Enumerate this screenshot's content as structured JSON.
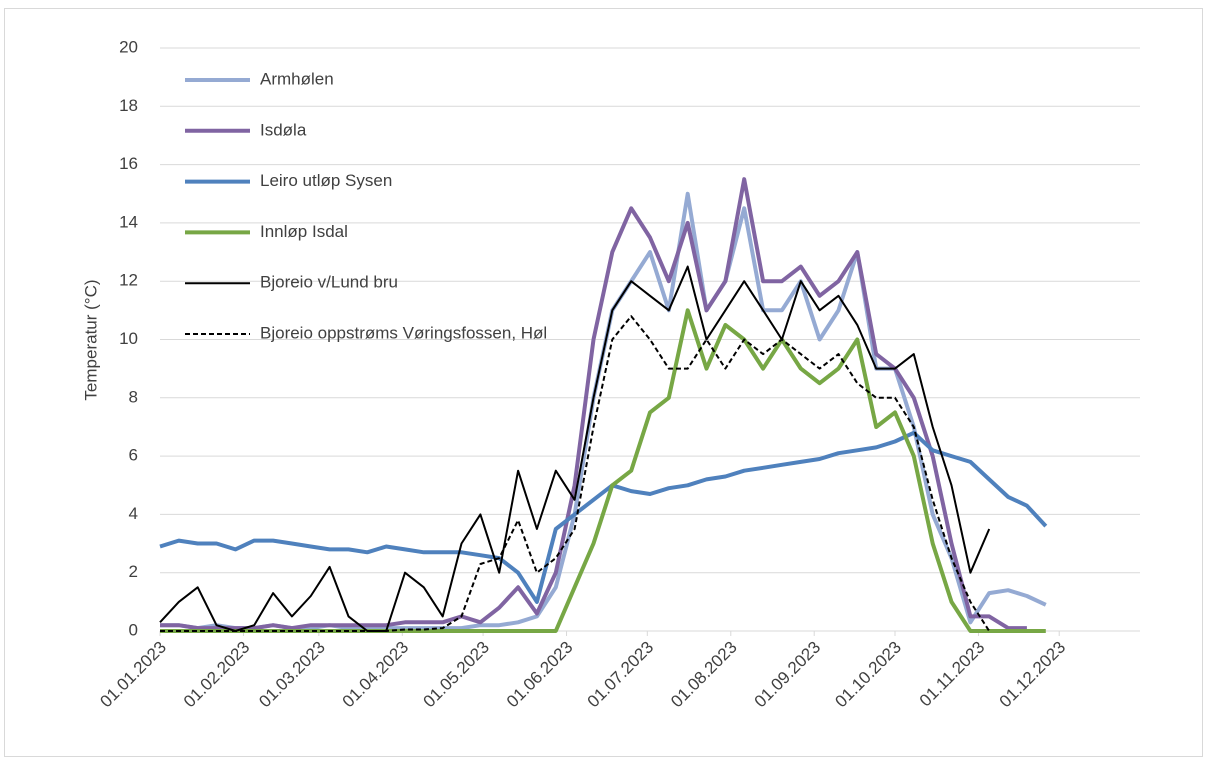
{
  "chart_data": {
    "type": "line",
    "y_label": "Temperatur (°C)",
    "x": [
      "01.01.2023",
      "08.01.2023",
      "15.01.2023",
      "22.01.2023",
      "29.01.2023",
      "05.02.2023",
      "12.02.2023",
      "19.02.2023",
      "26.02.2023",
      "05.03.2023",
      "12.03.2023",
      "19.03.2023",
      "26.03.2023",
      "02.04.2023",
      "09.04.2023",
      "16.04.2023",
      "23.04.2023",
      "30.04.2023",
      "07.05.2023",
      "14.05.2023",
      "21.05.2023",
      "28.05.2023",
      "04.06.2023",
      "11.06.2023",
      "18.06.2023",
      "25.06.2023",
      "02.07.2023",
      "09.07.2023",
      "16.07.2023",
      "23.07.2023",
      "30.07.2023",
      "06.08.2023",
      "13.08.2023",
      "20.08.2023",
      "27.08.2023",
      "03.09.2023",
      "10.09.2023",
      "17.09.2023",
      "24.09.2023",
      "01.10.2023",
      "08.10.2023",
      "15.10.2023",
      "22.10.2023",
      "29.10.2023",
      "05.11.2023",
      "12.11.2023",
      "19.11.2023",
      "26.11.2023"
    ],
    "series": [
      {
        "name": "Armhølen",
        "color": "#95aad3",
        "width": 4,
        "dashed": false,
        "values": [
          0.2,
          0.2,
          0.1,
          0.2,
          0.1,
          0.1,
          0.2,
          0.1,
          0.1,
          0.2,
          0.1,
          0.1,
          0.1,
          0.1,
          0.1,
          0.1,
          0.1,
          0.2,
          0.2,
          0.3,
          0.5,
          1.5,
          4,
          8,
          11,
          12,
          13,
          11,
          15,
          11,
          12,
          14.5,
          11,
          11,
          12,
          10,
          11,
          13,
          9,
          9,
          7,
          4,
          2.5,
          0.3,
          1.3,
          1.4,
          1.2,
          0.9
        ]
      },
      {
        "name": "Isdøla",
        "color": "#8064a2",
        "width": 4,
        "dashed": false,
        "values": [
          0.2,
          0.2,
          0.1,
          0.1,
          0.1,
          0.1,
          0.2,
          0.1,
          0.2,
          0.2,
          0.2,
          0.2,
          0.2,
          0.3,
          0.3,
          0.3,
          0.5,
          0.3,
          0.8,
          1.5,
          0.6,
          2,
          5,
          10,
          13,
          14.5,
          13.5,
          12,
          14,
          11,
          12,
          15.5,
          12,
          12,
          12.5,
          11.5,
          12,
          13,
          9.5,
          9,
          8,
          6,
          3,
          0.5,
          0.5,
          0.1,
          0.1,
          null
        ]
      },
      {
        "name": "Leiro utløp Sysen",
        "color": "#4f81bd",
        "width": 4,
        "dashed": false,
        "values": [
          2.9,
          3.1,
          3.0,
          3.0,
          2.8,
          3.1,
          3.1,
          3.0,
          2.9,
          2.8,
          2.8,
          2.7,
          2.9,
          2.8,
          2.7,
          2.7,
          2.7,
          2.6,
          2.5,
          2.0,
          1.0,
          3.5,
          4.0,
          4.5,
          5.0,
          4.8,
          4.7,
          4.9,
          5.0,
          5.2,
          5.3,
          5.5,
          5.6,
          5.7,
          5.8,
          5.9,
          6.1,
          6.2,
          6.3,
          6.5,
          6.8,
          6.2,
          6.0,
          5.8,
          5.2,
          4.6,
          4.3,
          3.6
        ]
      },
      {
        "name": "Innløp Isdal",
        "color": "#77a745",
        "width": 4,
        "dashed": false,
        "values": [
          0,
          0,
          0,
          0,
          0,
          0,
          0,
          0,
          0,
          0,
          0,
          0,
          0,
          0,
          0,
          0,
          0,
          0,
          0,
          0,
          0,
          0,
          1.5,
          3,
          5,
          5.5,
          7.5,
          8,
          11,
          9,
          10.5,
          10,
          9,
          10,
          9,
          8.5,
          9,
          10,
          7,
          7.5,
          6,
          3,
          1,
          0,
          0,
          0,
          0,
          0
        ]
      },
      {
        "name": "Bjoreio v/Lund bru",
        "color": "#000000",
        "width": 2,
        "dashed": false,
        "values": [
          0.3,
          1.0,
          1.5,
          0.2,
          0,
          0.2,
          1.3,
          0.5,
          1.2,
          2.2,
          0.5,
          0,
          0,
          2.0,
          1.5,
          0.5,
          3.0,
          4.0,
          2.0,
          5.5,
          3.5,
          5.5,
          4.5,
          8,
          11,
          12,
          11.5,
          11,
          12.5,
          10,
          11,
          12,
          11,
          10,
          12,
          11,
          11.5,
          10.5,
          9,
          9,
          9.5,
          7,
          5,
          2,
          3.5,
          null,
          null,
          null
        ]
      },
      {
        "name": "Bjoreio oppstrøms Vøringsfossen, Høl",
        "color": "#000000",
        "width": 2,
        "dashed": true,
        "values": [
          0,
          0,
          0,
          0,
          0,
          0,
          0,
          0,
          0,
          0,
          0,
          0,
          0,
          0.05,
          0.05,
          0.1,
          0.5,
          2.3,
          2.5,
          3.8,
          2.0,
          2.5,
          3.5,
          7,
          10,
          10.8,
          10,
          9,
          9,
          10,
          9,
          10,
          9.5,
          10,
          9.5,
          9,
          9.5,
          8.5,
          8,
          8,
          7,
          4.5,
          2.5,
          1,
          0,
          null,
          null,
          null
        ]
      }
    ],
    "xlim": [
      "01.01.2023",
      "31.12.2023"
    ],
    "xticks": [
      "01.01.2023",
      "01.02.2023",
      "01.03.2023",
      "01.04.2023",
      "01.05.2023",
      "01.06.2023",
      "01.07.2023",
      "01.08.2023",
      "01.09.2023",
      "01.10.2023",
      "01.11.2023",
      "01.12.2023"
    ],
    "ylim": [
      0,
      20
    ],
    "yticks": [
      0,
      2,
      4,
      6,
      8,
      10,
      12,
      14,
      16,
      18,
      20
    ],
    "grid": true,
    "legend": "upper-left"
  }
}
